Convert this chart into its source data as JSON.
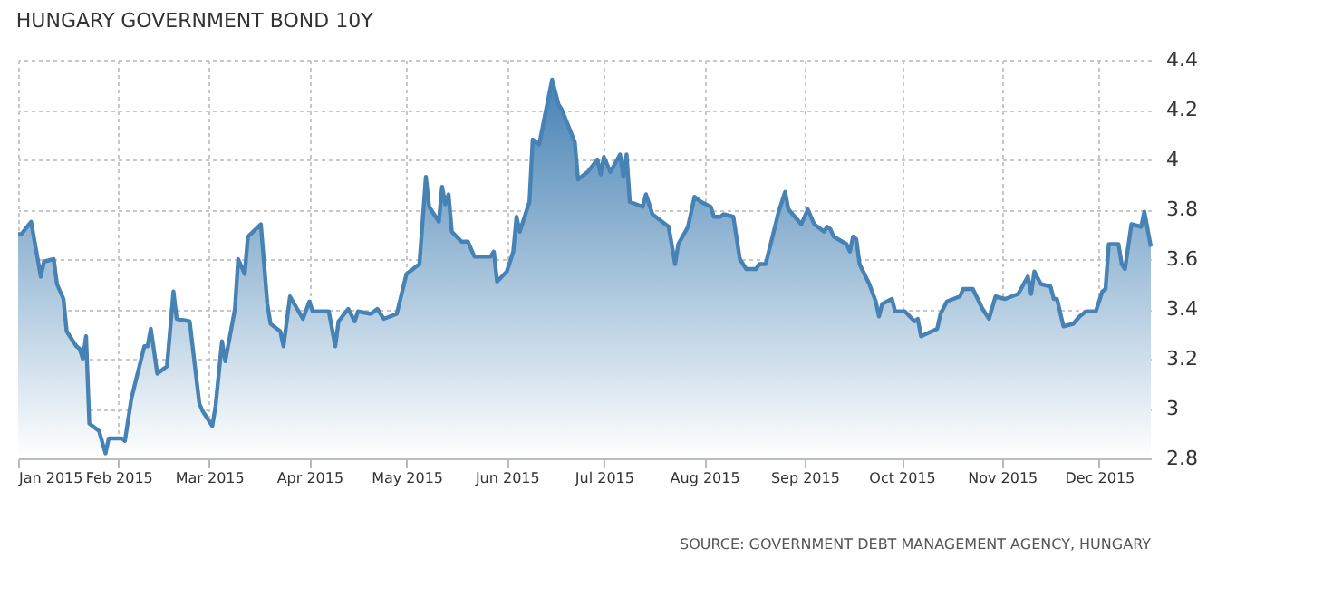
{
  "chart_data": {
    "type": "area",
    "title": "HUNGARY GOVERNMENT BOND 10Y",
    "annotations": [
      "SOURCE: GOVERNMENT DEBT MANAGEMENT AGENCY, HUNGARY"
    ],
    "x": [
      "2015-01-01",
      "2015-01-02",
      "2015-01-05",
      "2015-01-08",
      "2015-01-09",
      "2015-01-12",
      "2015-01-13",
      "2015-01-15",
      "2015-01-16",
      "2015-01-19",
      "2015-01-20",
      "2015-01-21",
      "2015-01-22",
      "2015-01-23",
      "2015-01-26",
      "2015-01-28",
      "2015-01-29",
      "2015-02-02",
      "2015-02-03",
      "2015-02-05",
      "2015-02-09",
      "2015-02-10",
      "2015-02-11",
      "2015-02-13",
      "2015-02-16",
      "2015-02-18",
      "2015-02-19",
      "2015-02-23",
      "2015-02-26",
      "2015-02-27",
      "2015-03-02",
      "2015-03-03",
      "2015-03-05",
      "2015-03-06",
      "2015-03-09",
      "2015-03-10",
      "2015-03-12",
      "2015-03-13",
      "2015-03-17",
      "2015-03-19",
      "2015-03-20",
      "2015-03-23",
      "2015-03-24",
      "2015-03-26",
      "2015-03-30",
      "2015-04-01",
      "2015-04-02",
      "2015-04-07",
      "2015-04-09",
      "2015-04-10",
      "2015-04-13",
      "2015-04-15",
      "2015-04-16",
      "2015-04-20",
      "2015-04-22",
      "2015-04-24",
      "2015-04-28",
      "2015-05-01",
      "2015-05-05",
      "2015-05-07",
      "2015-05-08",
      "2015-05-11",
      "2015-05-12",
      "2015-05-13",
      "2015-05-14",
      "2015-05-15",
      "2015-05-18",
      "2015-05-20",
      "2015-05-22",
      "2015-05-27",
      "2015-05-28",
      "2015-05-29",
      "2015-06-01",
      "2015-06-03",
      "2015-06-04",
      "2015-06-05",
      "2015-06-08",
      "2015-06-09",
      "2015-06-11",
      "2015-06-15",
      "2015-06-17",
      "2015-06-18",
      "2015-06-22",
      "2015-06-23",
      "2015-06-26",
      "2015-06-29",
      "2015-06-30",
      "2015-07-01",
      "2015-07-03",
      "2015-07-06",
      "2015-07-07",
      "2015-07-08",
      "2015-07-09",
      "2015-07-13",
      "2015-07-14",
      "2015-07-16",
      "2015-07-21",
      "2015-07-23",
      "2015-07-24",
      "2015-07-27",
      "2015-07-29",
      "2015-07-31",
      "2015-08-03",
      "2015-08-04",
      "2015-08-06",
      "2015-08-07",
      "2015-08-10",
      "2015-08-12",
      "2015-08-14",
      "2015-08-17",
      "2015-08-18",
      "2015-08-20",
      "2015-08-24",
      "2015-08-26",
      "2015-08-27",
      "2015-08-31",
      "2015-09-02",
      "2015-09-04",
      "2015-09-07",
      "2015-09-08",
      "2015-09-09",
      "2015-09-10",
      "2015-09-14",
      "2015-09-15",
      "2015-09-16",
      "2015-09-17",
      "2015-09-18",
      "2015-09-21",
      "2015-09-23",
      "2015-09-24",
      "2015-09-25",
      "2015-09-28",
      "2015-09-29",
      "2015-10-02",
      "2015-10-05",
      "2015-10-06",
      "2015-10-07",
      "2015-10-12",
      "2015-10-13",
      "2015-10-15",
      "2015-10-19",
      "2015-10-20",
      "2015-10-23",
      "2015-10-26",
      "2015-10-28",
      "2015-10-30",
      "2015-11-02",
      "2015-11-04",
      "2015-11-06",
      "2015-11-09",
      "2015-11-10",
      "2015-11-11",
      "2015-11-13",
      "2015-11-16",
      "2015-11-17",
      "2015-11-18",
      "2015-11-20",
      "2015-11-23",
      "2015-11-25",
      "2015-11-27",
      "2015-11-30",
      "2015-12-02",
      "2015-12-03",
      "2015-12-04",
      "2015-12-07",
      "2015-12-08",
      "2015-12-09",
      "2015-12-11",
      "2015-12-14",
      "2015-12-15",
      "2015-12-16",
      "2015-12-17"
    ],
    "series": [
      {
        "color": "#4682b4",
        "values": [
          3.7,
          3.7,
          3.75,
          3.53,
          3.59,
          3.6,
          3.5,
          3.44,
          3.31,
          3.25,
          3.24,
          3.2,
          3.29,
          2.94,
          2.91,
          2.82,
          2.88,
          2.88,
          2.87,
          3.04,
          3.25,
          3.25,
          3.32,
          3.14,
          3.17,
          3.47,
          3.36,
          3.35,
          3.02,
          2.99,
          2.93,
          3.01,
          3.27,
          3.19,
          3.4,
          3.6,
          3.54,
          3.69,
          3.74,
          3.42,
          3.34,
          3.31,
          3.25,
          3.45,
          3.36,
          3.43,
          3.39,
          3.39,
          3.25,
          3.35,
          3.4,
          3.35,
          3.39,
          3.38,
          3.4,
          3.36,
          3.38,
          3.54,
          3.58,
          3.93,
          3.81,
          3.75,
          3.89,
          3.82,
          3.86,
          3.71,
          3.67,
          3.67,
          3.61,
          3.61,
          3.63,
          3.51,
          3.55,
          3.63,
          3.77,
          3.71,
          3.83,
          4.08,
          4.06,
          4.32,
          4.22,
          4.2,
          4.07,
          3.92,
          3.95,
          4.0,
          3.94,
          4.01,
          3.95,
          4.02,
          3.93,
          4.02,
          3.83,
          3.81,
          3.86,
          3.78,
          3.73,
          3.58,
          3.66,
          3.73,
          3.85,
          3.83,
          3.81,
          3.77,
          3.77,
          3.78,
          3.77,
          3.6,
          3.56,
          3.56,
          3.58,
          3.58,
          3.79,
          3.87,
          3.8,
          3.74,
          3.8,
          3.74,
          3.71,
          3.73,
          3.72,
          3.69,
          3.66,
          3.63,
          3.69,
          3.68,
          3.58,
          3.5,
          3.43,
          3.37,
          3.42,
          3.44,
          3.39,
          3.39,
          3.35,
          3.36,
          3.29,
          3.32,
          3.38,
          3.43,
          3.45,
          3.48,
          3.48,
          3.4,
          3.36,
          3.45,
          3.44,
          3.45,
          3.46,
          3.53,
          3.46,
          3.55,
          3.5,
          3.49,
          3.44,
          3.44,
          3.33,
          3.34,
          3.37,
          3.39,
          3.39,
          3.47,
          3.48,
          3.66,
          3.66,
          3.58,
          3.56,
          3.74,
          3.73,
          3.79,
          3.72,
          3.65
        ]
      }
    ],
    "xlim": [
      "2015-01-01",
      "2015-12-17"
    ],
    "xticks": [
      {
        "value": "2015-01-01",
        "label": "Jan 2015"
      },
      {
        "value": "2015-02-01",
        "label": "Feb 2015"
      },
      {
        "value": "2015-03-01",
        "label": "Mar 2015"
      },
      {
        "value": "2015-04-01",
        "label": "Apr 2015"
      },
      {
        "value": "2015-05-01",
        "label": "May 2015"
      },
      {
        "value": "2015-06-01",
        "label": "Jun 2015"
      },
      {
        "value": "2015-07-01",
        "label": "Jul 2015"
      },
      {
        "value": "2015-08-01",
        "label": "Aug 2015"
      },
      {
        "value": "2015-09-01",
        "label": "Sep 2015"
      },
      {
        "value": "2015-10-01",
        "label": "Oct 2015"
      },
      {
        "value": "2015-11-01",
        "label": "Nov 2015"
      },
      {
        "value": "2015-12-01",
        "label": "Dec 2015"
      }
    ],
    "ylim": [
      2.8,
      4.4
    ],
    "yticks": [
      2.8,
      3,
      3.2,
      3.4,
      3.6,
      3.8,
      4,
      4.2,
      4.4
    ],
    "grid": true,
    "legend": false,
    "line_style": "solid",
    "marker": "none"
  }
}
